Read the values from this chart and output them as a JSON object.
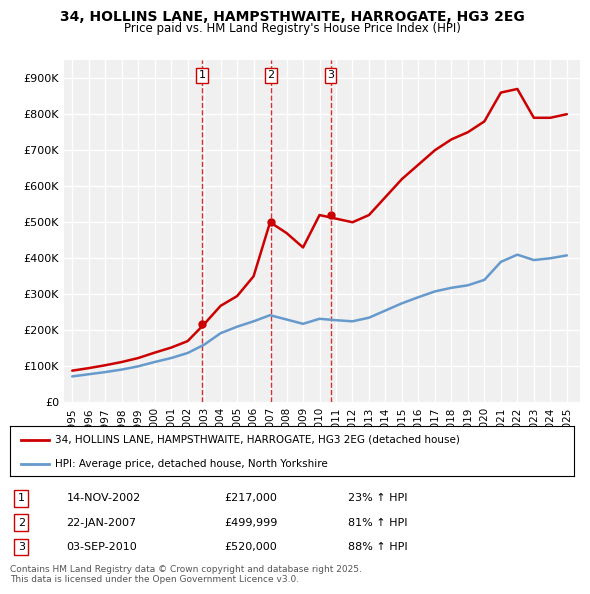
{
  "title": "34, HOLLINS LANE, HAMPSTHWAITE, HARROGATE, HG3 2EG",
  "subtitle": "Price paid vs. HM Land Registry's House Price Index (HPI)",
  "xlabel": "",
  "ylabel": "",
  "ylim": [
    0,
    950000
  ],
  "ytick_values": [
    0,
    100000,
    200000,
    300000,
    400000,
    500000,
    600000,
    700000,
    800000,
    900000
  ],
  "ytick_labels": [
    "£0",
    "£100K",
    "£200K",
    "£300K",
    "£400K",
    "£500K",
    "£600K",
    "£700K",
    "£800K",
    "£900K"
  ],
  "background_color": "#ffffff",
  "plot_bg_color": "#f0f0f0",
  "grid_color": "#ffffff",
  "red_line_color": "#cc0000",
  "blue_line_color": "#6699cc",
  "sale_marker_color": "#cc0000",
  "dashed_line_color": "#cc0000",
  "legend_label_red": "34, HOLLINS LANE, HAMPSTHWAITE, HARROGATE, HG3 2EG (detached house)",
  "legend_label_blue": "HPI: Average price, detached house, North Yorkshire",
  "sale_dates": [
    "2002-11-14",
    "2007-01-22",
    "2010-09-03"
  ],
  "sale_prices": [
    217000,
    499999,
    520000
  ],
  "sale_labels": [
    "1",
    "2",
    "3"
  ],
  "sale_info": [
    {
      "num": "1",
      "date": "14-NOV-2002",
      "price": "£217,000",
      "change": "23% ↑ HPI"
    },
    {
      "num": "2",
      "date": "22-JAN-2007",
      "price": "£499,999",
      "change": "81% ↑ HPI"
    },
    {
      "num": "3",
      "date": "03-SEP-2010",
      "price": "£520,000",
      "change": "88% ↑ HPI"
    }
  ],
  "footer": "Contains HM Land Registry data © Crown copyright and database right 2025.\nThis data is licensed under the Open Government Licence v3.0.",
  "hpi_years": [
    1995,
    1996,
    1997,
    1998,
    1999,
    2000,
    2001,
    2002,
    2003,
    2004,
    2005,
    2006,
    2007,
    2008,
    2009,
    2010,
    2011,
    2012,
    2013,
    2014,
    2015,
    2016,
    2017,
    2018,
    2019,
    2020,
    2021,
    2022,
    2023,
    2024,
    2025
  ],
  "hpi_values": [
    72000,
    78000,
    84000,
    91000,
    100000,
    112000,
    123000,
    137000,
    160000,
    192000,
    210000,
    225000,
    242000,
    230000,
    218000,
    232000,
    228000,
    225000,
    235000,
    255000,
    275000,
    292000,
    308000,
    318000,
    325000,
    340000,
    390000,
    410000,
    395000,
    400000,
    408000
  ],
  "red_years": [
    1995,
    1996,
    1997,
    1998,
    1999,
    2000,
    2001,
    2002,
    2003,
    2004,
    2005,
    2006,
    2007,
    2008,
    2009,
    2010,
    2011,
    2012,
    2013,
    2014,
    2015,
    2016,
    2017,
    2018,
    2019,
    2020,
    2021,
    2022,
    2023,
    2024,
    2025
  ],
  "red_values": [
    88000,
    95000,
    103000,
    112000,
    123000,
    138000,
    152000,
    170000,
    217000,
    268000,
    295000,
    350000,
    499999,
    470000,
    430000,
    520000,
    510000,
    500000,
    520000,
    570000,
    620000,
    660000,
    700000,
    730000,
    750000,
    780000,
    860000,
    870000,
    790000,
    790000,
    800000
  ]
}
